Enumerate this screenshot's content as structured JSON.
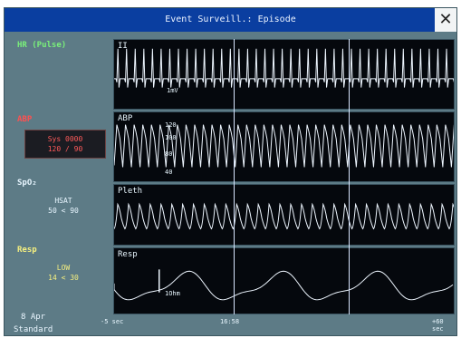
{
  "window": {
    "title": "Event Surveill.: Episode",
    "close_label": "✕"
  },
  "left": {
    "hr_label": "HR (Pulse)",
    "abp_label": "ABP",
    "abp_values": [
      "Sys 0000",
      "120 / 90"
    ],
    "spo2_label": "SpO₂",
    "spo2_values": [
      "HSAT",
      "50 < 90"
    ],
    "resp_label": "Resp",
    "resp_values": [
      "LOW",
      "14 < 30"
    ],
    "date": "8 Apr",
    "mode": "Standard"
  },
  "panels": {
    "ecg": {
      "label": "II",
      "scale": "1mV"
    },
    "abp": {
      "label": "ABP",
      "ticks": [
        "120",
        "100",
        "80",
        "40"
      ]
    },
    "pleth": {
      "label": "Pleth"
    },
    "resp": {
      "label": "Resp",
      "scale": "1Ohm"
    }
  },
  "time_axis": {
    "left": "-5 sec",
    "center": "16:58",
    "right": "+60 sec"
  },
  "colors": {
    "title_bg": "#0a3ea0",
    "panel_bg": "#05080d",
    "trace": "#eef6ff",
    "abp_value": "#ff5a5a",
    "hr_label": "#7af07a",
    "resp_label": "#f6f080"
  }
}
